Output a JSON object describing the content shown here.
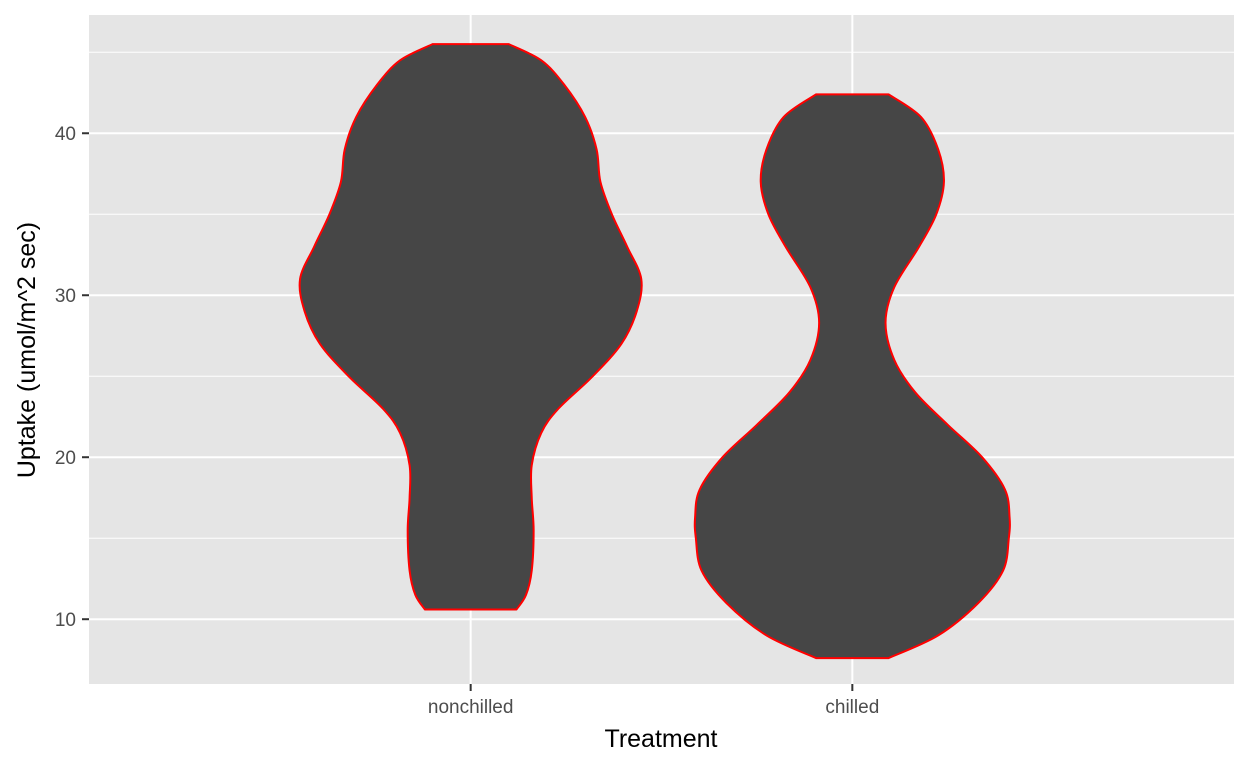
{
  "chart_data": {
    "type": "violin",
    "xlabel": "Treatment",
    "ylabel": "Uptake (umol/m^2 sec)",
    "categories": [
      "nonchilled",
      "chilled"
    ],
    "y_ticks": [
      10,
      20,
      30,
      40
    ],
    "ylim": [
      6.0,
      47.3
    ],
    "grid": true,
    "colors": {
      "panel_background": "#e5e5e5",
      "grid_line": "#ffffff",
      "violin_fill": "#464646",
      "violin_outline": "#ff0000",
      "tick_text": "#4d4d4d",
      "axis_title": "#000000"
    },
    "violins": [
      {
        "category": "nonchilled",
        "y_min": 10.6,
        "y_max": 45.5,
        "density_profile": [
          {
            "y": 10.6,
            "half_width": 0.12
          },
          {
            "y": 11.5,
            "half_width": 0.145
          },
          {
            "y": 13.0,
            "half_width": 0.16
          },
          {
            "y": 15.5,
            "half_width": 0.165
          },
          {
            "y": 17.5,
            "half_width": 0.16
          },
          {
            "y": 19.5,
            "half_width": 0.16
          },
          {
            "y": 21.5,
            "half_width": 0.185
          },
          {
            "y": 23.0,
            "half_width": 0.23
          },
          {
            "y": 25.0,
            "half_width": 0.32
          },
          {
            "y": 27.0,
            "half_width": 0.395
          },
          {
            "y": 29.0,
            "half_width": 0.435
          },
          {
            "y": 31.0,
            "half_width": 0.447
          },
          {
            "y": 33.0,
            "half_width": 0.41
          },
          {
            "y": 35.0,
            "half_width": 0.37
          },
          {
            "y": 37.0,
            "half_width": 0.34
          },
          {
            "y": 39.0,
            "half_width": 0.33
          },
          {
            "y": 41.0,
            "half_width": 0.3
          },
          {
            "y": 43.0,
            "half_width": 0.245
          },
          {
            "y": 44.5,
            "half_width": 0.185
          },
          {
            "y": 45.5,
            "half_width": 0.1
          }
        ]
      },
      {
        "category": "chilled",
        "y_min": 7.6,
        "y_max": 42.4,
        "density_profile": [
          {
            "y": 7.6,
            "half_width": 0.095
          },
          {
            "y": 9.0,
            "half_width": 0.225
          },
          {
            "y": 11.0,
            "half_width": 0.33
          },
          {
            "y": 13.0,
            "half_width": 0.395
          },
          {
            "y": 15.0,
            "half_width": 0.41
          },
          {
            "y": 16.3,
            "half_width": 0.412
          },
          {
            "y": 18.0,
            "half_width": 0.4
          },
          {
            "y": 20.0,
            "half_width": 0.34
          },
          {
            "y": 22.0,
            "half_width": 0.25
          },
          {
            "y": 24.0,
            "half_width": 0.165
          },
          {
            "y": 26.0,
            "half_width": 0.11
          },
          {
            "y": 28.3,
            "half_width": 0.087
          },
          {
            "y": 30.5,
            "half_width": 0.11
          },
          {
            "y": 33.0,
            "half_width": 0.175
          },
          {
            "y": 35.0,
            "half_width": 0.22
          },
          {
            "y": 37.0,
            "half_width": 0.24
          },
          {
            "y": 39.0,
            "half_width": 0.225
          },
          {
            "y": 41.0,
            "half_width": 0.18
          },
          {
            "y": 42.4,
            "half_width": 0.095
          }
        ]
      }
    ]
  }
}
